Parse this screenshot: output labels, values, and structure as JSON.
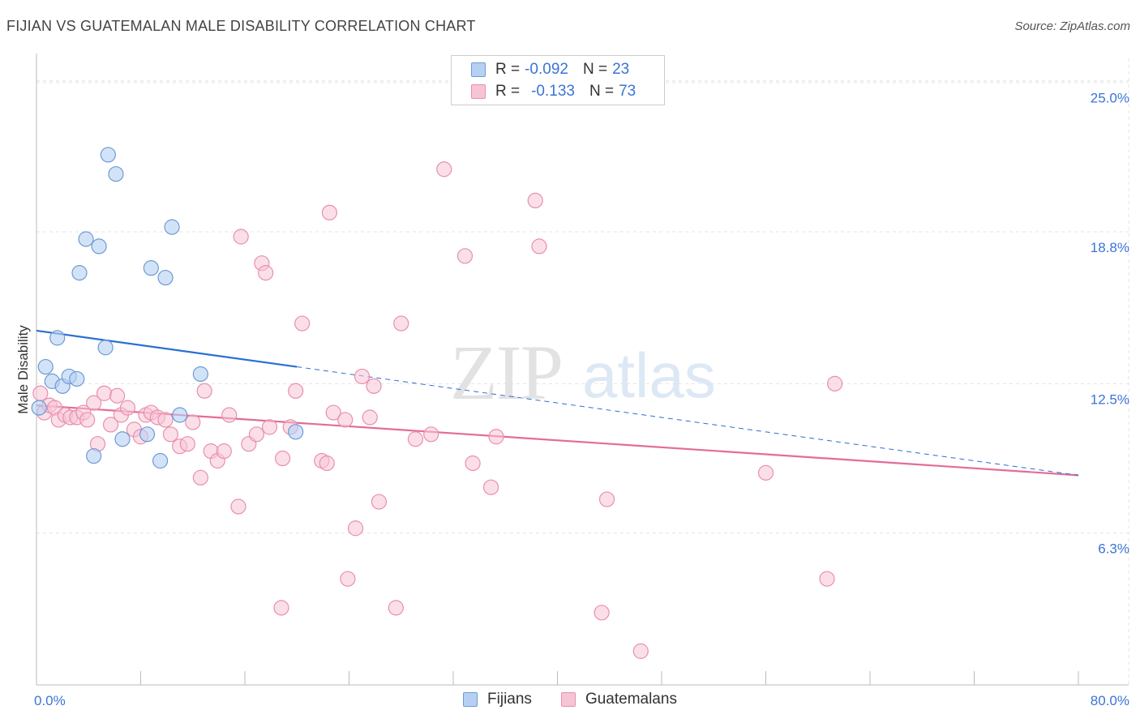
{
  "header": {
    "title": "FIJIAN VS GUATEMALAN MALE DISABILITY CORRELATION CHART",
    "source": "Source: ZipAtlas.com"
  },
  "watermark": {
    "zip": "ZIP",
    "atlas": "atlas"
  },
  "legend": {
    "rows": [
      {
        "r_label": "R = ",
        "r_value": "-0.092",
        "n_label": "N = ",
        "n_value": "23"
      },
      {
        "r_label": "R = ",
        "r_value": "-0.133",
        "n_label": "N = ",
        "n_value": "73"
      }
    ]
  },
  "chart_data": {
    "type": "scatter",
    "title": "FIJIAN VS GUATEMALAN MALE DISABILITY CORRELATION CHART",
    "xlabel": "",
    "ylabel": "Male Disability",
    "xlim": [
      0,
      80
    ],
    "ylim": [
      0,
      26
    ],
    "x_tick_labels": [
      {
        "value": 0,
        "label": "0.0%"
      },
      {
        "value": 80,
        "label": "80.0%"
      }
    ],
    "y_tick_labels": [
      {
        "value": 25.0,
        "label": "25.0%"
      },
      {
        "value": 18.8,
        "label": "18.8%"
      },
      {
        "value": 12.5,
        "label": "12.5%"
      },
      {
        "value": 6.3,
        "label": "6.3%"
      }
    ],
    "colors": {
      "fijians_fill": "#b6d0f2",
      "fijians_stroke": "#6e9ad6",
      "fijians_line": "#2b6fd1",
      "guatemalans_fill": "#f7c4d5",
      "guatemalans_stroke": "#e88fae",
      "guatemalans_line": "#e46c97"
    },
    "series": [
      {
        "name": "Fijians",
        "points": [
          [
            0.2,
            11.5
          ],
          [
            0.7,
            13.2
          ],
          [
            1.2,
            12.6
          ],
          [
            1.6,
            14.4
          ],
          [
            2.0,
            12.4
          ],
          [
            2.5,
            12.8
          ],
          [
            3.1,
            12.7
          ],
          [
            3.3,
            17.1
          ],
          [
            3.8,
            18.5
          ],
          [
            4.4,
            9.5
          ],
          [
            4.8,
            18.2
          ],
          [
            5.3,
            14.0
          ],
          [
            5.5,
            22.0
          ],
          [
            6.1,
            21.2
          ],
          [
            6.6,
            10.2
          ],
          [
            8.5,
            10.4
          ],
          [
            8.8,
            17.3
          ],
          [
            9.5,
            9.3
          ],
          [
            9.9,
            16.9
          ],
          [
            10.4,
            19.0
          ],
          [
            11.0,
            11.2
          ],
          [
            12.6,
            12.9
          ],
          [
            19.9,
            10.5
          ]
        ],
        "trend_solid": [
          [
            0,
            14.7
          ],
          [
            20,
            13.2
          ]
        ],
        "trend_dashed": [
          [
            20,
            13.2
          ],
          [
            80,
            8.7
          ]
        ]
      },
      {
        "name": "Guatemalans",
        "points": [
          [
            0.3,
            12.1
          ],
          [
            0.6,
            11.3
          ],
          [
            1.0,
            11.6
          ],
          [
            1.4,
            11.5
          ],
          [
            1.7,
            11.0
          ],
          [
            2.2,
            11.2
          ],
          [
            2.6,
            11.1
          ],
          [
            3.1,
            11.1
          ],
          [
            3.6,
            11.3
          ],
          [
            3.9,
            11.0
          ],
          [
            4.4,
            11.7
          ],
          [
            4.7,
            10.0
          ],
          [
            5.2,
            12.1
          ],
          [
            5.7,
            10.8
          ],
          [
            6.2,
            12.0
          ],
          [
            6.5,
            11.2
          ],
          [
            7.0,
            11.5
          ],
          [
            7.5,
            10.6
          ],
          [
            8.0,
            10.3
          ],
          [
            8.4,
            11.2
          ],
          [
            8.8,
            11.3
          ],
          [
            9.3,
            11.1
          ],
          [
            9.9,
            11.0
          ],
          [
            10.3,
            10.4
          ],
          [
            11.0,
            9.9
          ],
          [
            11.6,
            10.0
          ],
          [
            12.0,
            10.9
          ],
          [
            12.6,
            8.6
          ],
          [
            12.9,
            12.2
          ],
          [
            13.4,
            9.7
          ],
          [
            13.9,
            9.3
          ],
          [
            14.4,
            9.7
          ],
          [
            14.8,
            11.2
          ],
          [
            15.5,
            7.4
          ],
          [
            15.7,
            18.6
          ],
          [
            16.3,
            10.0
          ],
          [
            16.9,
            10.4
          ],
          [
            17.3,
            17.5
          ],
          [
            17.6,
            17.1
          ],
          [
            17.9,
            10.7
          ],
          [
            18.8,
            3.2
          ],
          [
            18.9,
            9.4
          ],
          [
            19.5,
            10.7
          ],
          [
            19.9,
            12.2
          ],
          [
            20.4,
            15.0
          ],
          [
            21.9,
            9.3
          ],
          [
            22.3,
            9.2
          ],
          [
            22.5,
            19.6
          ],
          [
            22.8,
            11.3
          ],
          [
            23.7,
            11.0
          ],
          [
            23.9,
            4.4
          ],
          [
            24.5,
            6.5
          ],
          [
            25.0,
            12.8
          ],
          [
            25.6,
            11.1
          ],
          [
            25.9,
            12.4
          ],
          [
            26.3,
            7.6
          ],
          [
            27.6,
            3.2
          ],
          [
            28.0,
            15.0
          ],
          [
            29.1,
            10.2
          ],
          [
            30.3,
            10.4
          ],
          [
            31.3,
            21.4
          ],
          [
            32.9,
            17.8
          ],
          [
            33.5,
            9.2
          ],
          [
            34.9,
            8.2
          ],
          [
            35.3,
            10.3
          ],
          [
            38.3,
            20.1
          ],
          [
            38.6,
            18.2
          ],
          [
            43.4,
            3.0
          ],
          [
            43.8,
            7.7
          ],
          [
            46.4,
            1.4
          ],
          [
            56.0,
            8.8
          ],
          [
            60.7,
            4.4
          ],
          [
            61.3,
            12.5
          ]
        ],
        "trend_solid": [
          [
            0,
            11.6
          ],
          [
            80,
            8.7
          ]
        ]
      }
    ]
  }
}
